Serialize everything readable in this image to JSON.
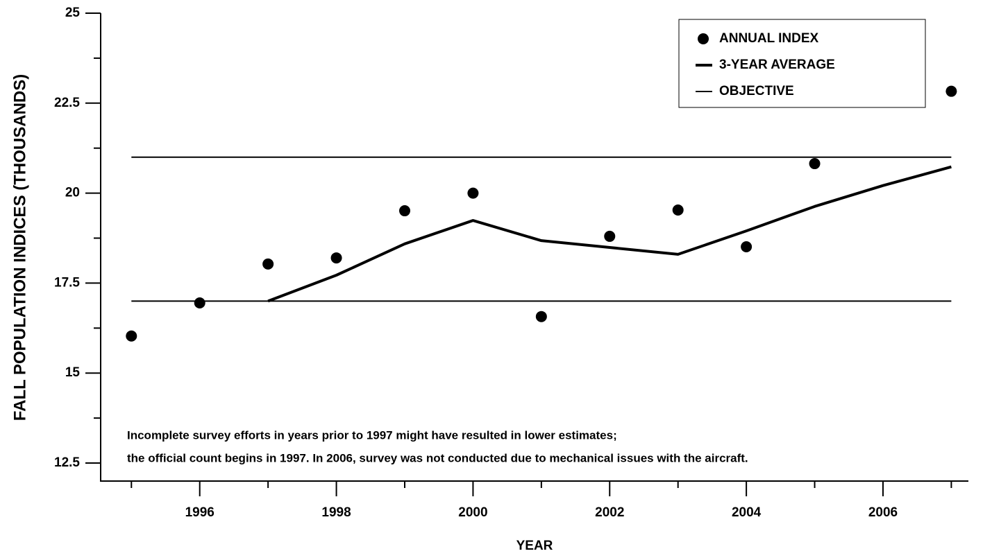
{
  "chart_data": {
    "type": "line",
    "x_label": "YEAR",
    "y_label": "FALL POPULATION INDICES (THOUSANDS)",
    "x": [
      1995,
      1996,
      1997,
      1998,
      1999,
      2000,
      2001,
      2002,
      2003,
      2004,
      2005,
      2006,
      2007
    ],
    "series": [
      {
        "name": "ANNUAL INDEX",
        "color": "#000000",
        "style": "marker",
        "values": [
          16.03,
          16.95,
          18.03,
          18.2,
          19.51,
          20.0,
          16.57,
          18.8,
          19.53,
          18.51,
          20.82,
          null,
          22.83
        ]
      },
      {
        "name": "3-YEAR AVERAGE",
        "color": "#000000",
        "style": "line",
        "line_width": 4,
        "values": [
          null,
          null,
          17.0,
          17.72,
          18.59,
          19.24,
          18.68,
          18.49,
          18.3,
          18.95,
          19.63,
          20.21,
          20.73
        ]
      }
    ],
    "objective": {
      "name": "OBJECTIVE",
      "color": "#000000",
      "line_width": 2,
      "values": [
        17,
        21
      ]
    },
    "xlim": [
      1994.55,
      2007.25
    ],
    "ylim": [
      12,
      25
    ],
    "xticks": [
      1996,
      1998,
      2000,
      2002,
      2004,
      2006
    ],
    "xminor_ticks": [
      1995,
      1997,
      1999,
      2001,
      2003,
      2005,
      2007
    ],
    "yticks": [
      12.5,
      15,
      17.5,
      20,
      22.5,
      25
    ],
    "yminor_ticks": [
      13.75,
      16.25,
      18.75,
      21.25,
      23.75
    ],
    "legend": "upper right",
    "annotations": [
      "Incomplete survey efforts in years prior to 1997 might have resulted in lower estimates;",
      "the official count begins in 1997. In 2006, survey was not conducted due to mechanical issues with the aircraft."
    ]
  }
}
